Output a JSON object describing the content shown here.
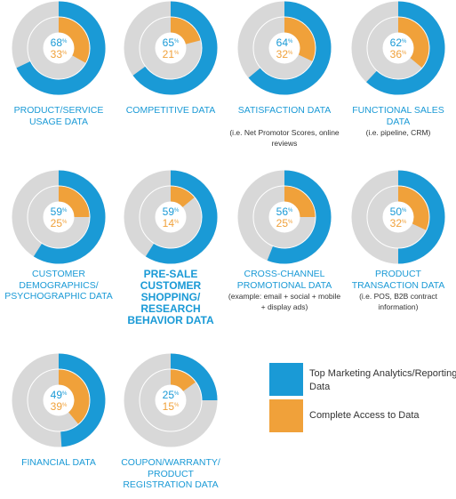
{
  "colors": {
    "blue": "#1a9ad6",
    "orange": "#f0a13a",
    "gray": "#d8d8d8"
  },
  "chart_data": {
    "type": "donut-pair",
    "unit": "%",
    "series": [
      {
        "key": "blue",
        "name": "Top Marketing Analytics/Reporting Data"
      },
      {
        "key": "orange",
        "name": "Complete Access to Data"
      }
    ],
    "items": [
      {
        "label": "PRODUCT/SERVICE USAGE DATA",
        "note": "",
        "blue": 68,
        "orange": 33,
        "emphasis": false
      },
      {
        "label": "COMPETITIVE DATA",
        "note": "",
        "blue": 65,
        "orange": 21,
        "emphasis": false
      },
      {
        "label": "SATISFACTION DATA",
        "note": "(i.e. Net Promotor Scores, online reviews",
        "blue": 64,
        "orange": 32,
        "emphasis": false
      },
      {
        "label": "FUNCTIONAL SALES DATA",
        "note": "(i.e. pipeline, CRM)",
        "blue": 62,
        "orange": 36,
        "emphasis": false
      },
      {
        "label": "CUSTOMER DEMOGRAPHICS/ PSYCHOGRAPHIC DATA",
        "note": "",
        "blue": 59,
        "orange": 25,
        "emphasis": false
      },
      {
        "label": "PRE-SALE CUSTOMER SHOPPING/ RESEARCH BEHAVIOR DATA",
        "note": "",
        "blue": 59,
        "orange": 14,
        "emphasis": true
      },
      {
        "label": "CROSS-CHANNEL PROMOTIONAL DATA",
        "note": "(example: email + social + mobile + display ads)",
        "blue": 56,
        "orange": 25,
        "emphasis": false
      },
      {
        "label": "PRODUCT TRANSACTION DATA",
        "note": "(i.e. POS, B2B contract information)",
        "blue": 50,
        "orange": 32,
        "emphasis": false
      },
      {
        "label": "FINANCIAL DATA",
        "note": "",
        "blue": 49,
        "orange": 39,
        "emphasis": false
      },
      {
        "label": "COUPON/WARRANTY/ PRODUCT REGISTRATION DATA",
        "note": "",
        "blue": 25,
        "orange": 15,
        "emphasis": false
      }
    ]
  },
  "legend": [
    {
      "key": "blue",
      "label": "Top Marketing Analytics/Reporting Data"
    },
    {
      "key": "orange",
      "label": "Complete Access to Data"
    }
  ]
}
